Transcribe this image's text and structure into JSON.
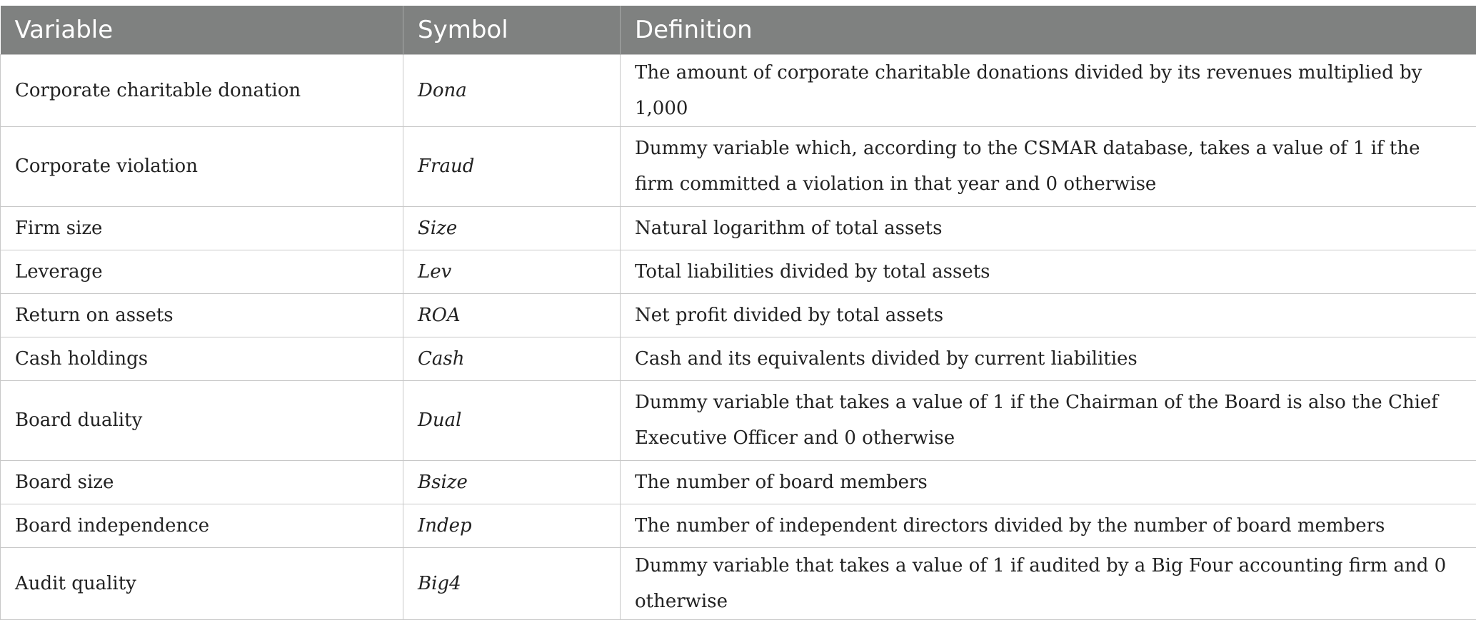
{
  "table": {
    "headers": [
      "Variable",
      "Symbol",
      "Definition"
    ],
    "rows": [
      {
        "variable": "Corporate charitable donation",
        "symbol": "Dona",
        "definition": "The amount of corporate charitable donations divided by its revenues multiplied by 1,000"
      },
      {
        "variable": "Corporate violation",
        "symbol": "Fraud",
        "definition": "Dummy variable which, according to the CSMAR database, takes a value of 1 if the firm committed a violation in that year and 0 otherwise"
      },
      {
        "variable": "Firm size",
        "symbol": "Size",
        "definition": "Natural logarithm of total assets"
      },
      {
        "variable": "Leverage",
        "symbol": "Lev",
        "definition": "Total liabilities divided by total assets"
      },
      {
        "variable": "Return on assets",
        "symbol": "ROA",
        "definition": "Net profit divided by total assets"
      },
      {
        "variable": "Cash holdings",
        "symbol": "Cash",
        "definition": "Cash and its equivalents divided by current liabilities"
      },
      {
        "variable": "Board duality",
        "symbol": "Dual",
        "definition": "Dummy variable that takes a value of 1 if the Chairman of the Board is also the Chief Executive Officer and 0 otherwise"
      },
      {
        "variable": "Board size",
        "symbol": "Bsize",
        "definition": "The number of board members"
      },
      {
        "variable": "Board independence",
        "symbol": "Indep",
        "definition": "The number of independent directors divided by the number of board members"
      },
      {
        "variable": "Audit quality",
        "symbol": "Big4",
        "definition": "Dummy variable that takes a value of 1 if audited by a Big Four accounting firm and 0 otherwise"
      }
    ]
  }
}
